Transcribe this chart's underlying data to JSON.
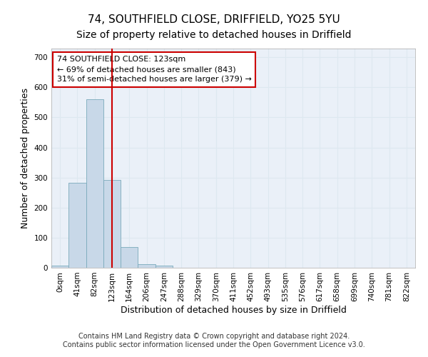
{
  "title1": "74, SOUTHFIELD CLOSE, DRIFFIELD, YO25 5YU",
  "title2": "Size of property relative to detached houses in Driffield",
  "xlabel": "Distribution of detached houses by size in Driffield",
  "ylabel": "Number of detached properties",
  "footer1": "Contains HM Land Registry data © Crown copyright and database right 2024.",
  "footer2": "Contains public sector information licensed under the Open Government Licence v3.0.",
  "bar_labels": [
    "0sqm",
    "41sqm",
    "82sqm",
    "123sqm",
    "164sqm",
    "206sqm",
    "247sqm",
    "288sqm",
    "329sqm",
    "370sqm",
    "411sqm",
    "452sqm",
    "493sqm",
    "535sqm",
    "576sqm",
    "617sqm",
    "658sqm",
    "699sqm",
    "740sqm",
    "781sqm",
    "822sqm"
  ],
  "bar_values": [
    6,
    283,
    560,
    293,
    70,
    13,
    8,
    0,
    0,
    0,
    0,
    0,
    0,
    0,
    0,
    0,
    0,
    0,
    0,
    0,
    0
  ],
  "bar_color": "#c8d8e8",
  "bar_edge_color": "#7aaabb",
  "redline_x": 3,
  "ylim": [
    0,
    730
  ],
  "yticks": [
    0,
    100,
    200,
    300,
    400,
    500,
    600,
    700
  ],
  "annotation_title": "74 SOUTHFIELD CLOSE: 123sqm",
  "annotation_line1": "← 69% of detached houses are smaller (843)",
  "annotation_line2": "31% of semi-detached houses are larger (379) →",
  "annotation_box_color": "#ffffff",
  "annotation_box_edgecolor": "#cc0000",
  "grid_color": "#dde8f0",
  "bg_color": "#eaf0f8",
  "title1_fontsize": 11,
  "title2_fontsize": 10,
  "xlabel_fontsize": 9,
  "ylabel_fontsize": 9,
  "footer_fontsize": 7,
  "tick_fontsize": 7.5,
  "annot_fontsize": 8
}
